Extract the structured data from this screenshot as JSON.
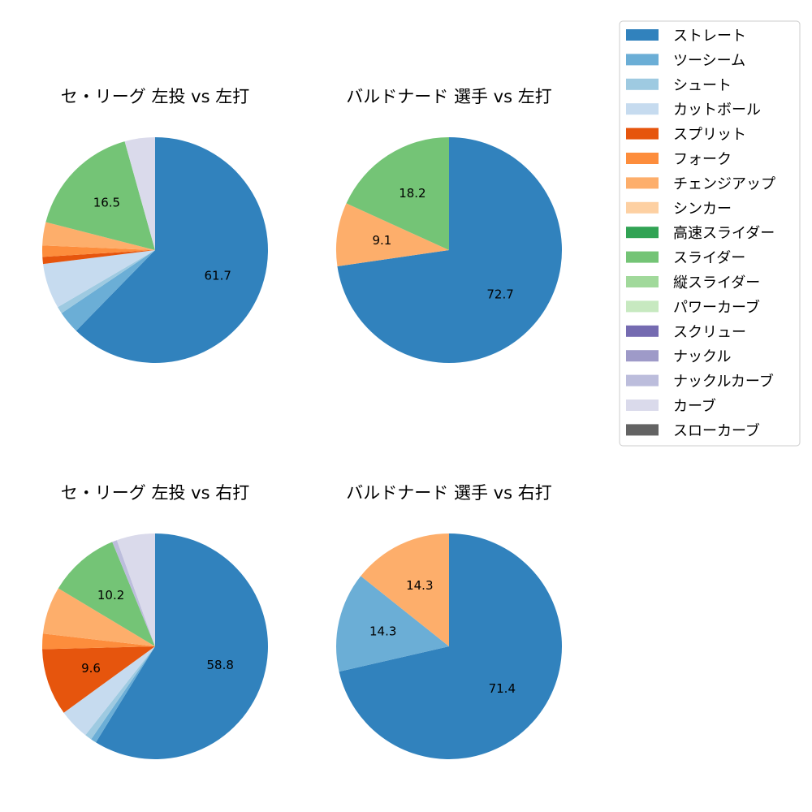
{
  "legend": {
    "items": [
      {
        "label": "ストレート",
        "color": "#3182bd"
      },
      {
        "label": "ツーシーム",
        "color": "#6baed6"
      },
      {
        "label": "シュート",
        "color": "#9ecae1"
      },
      {
        "label": "カットボール",
        "color": "#c6dbef"
      },
      {
        "label": "スプリット",
        "color": "#e6550d"
      },
      {
        "label": "フォーク",
        "color": "#fd8d3c"
      },
      {
        "label": "チェンジアップ",
        "color": "#fdae6b"
      },
      {
        "label": "シンカー",
        "color": "#fdd0a2"
      },
      {
        "label": "高速スライダー",
        "color": "#31a354"
      },
      {
        "label": "スライダー",
        "color": "#74c476"
      },
      {
        "label": "縦スライダー",
        "color": "#a1d99b"
      },
      {
        "label": "パワーカーブ",
        "color": "#c7e9c0"
      },
      {
        "label": "スクリュー",
        "color": "#756bb1"
      },
      {
        "label": "ナックル",
        "color": "#9e9ac8"
      },
      {
        "label": "ナックルカーブ",
        "color": "#bcbddc"
      },
      {
        "label": "カーブ",
        "color": "#dadaeb"
      },
      {
        "label": "スローカーブ",
        "color": "#636363"
      }
    ]
  },
  "chart_data": [
    {
      "type": "pie",
      "title": "セ・リーグ 左投 vs 左打",
      "start_angle_deg": 90,
      "direction": "clockwise",
      "slices": [
        {
          "label": "ストレート",
          "value": 61.7,
          "color": "#3182bd",
          "show_label": "61.7"
        },
        {
          "label": "ツーシーム",
          "value": 3.2,
          "color": "#6baed6",
          "show_label": ""
        },
        {
          "label": "シュート",
          "value": 1.0,
          "color": "#9ecae1",
          "show_label": ""
        },
        {
          "label": "カットボール",
          "value": 6.4,
          "color": "#c6dbef",
          "show_label": ""
        },
        {
          "label": "スプリット",
          "value": 1.0,
          "color": "#e6550d",
          "show_label": ""
        },
        {
          "label": "フォーク",
          "value": 1.6,
          "color": "#fd8d3c",
          "show_label": ""
        },
        {
          "label": "チェンジアップ",
          "value": 3.3,
          "color": "#fdae6b",
          "show_label": ""
        },
        {
          "label": "スライダー",
          "value": 16.5,
          "color": "#74c476",
          "show_label": "16.5"
        },
        {
          "label": "カーブ",
          "value": 4.3,
          "color": "#dadaeb",
          "show_label": ""
        }
      ]
    },
    {
      "type": "pie",
      "title": "バルドナード 選手 vs 左打",
      "start_angle_deg": 90,
      "direction": "clockwise",
      "slices": [
        {
          "label": "ストレート",
          "value": 72.7,
          "color": "#3182bd",
          "show_label": "72.7"
        },
        {
          "label": "チェンジアップ",
          "value": 9.1,
          "color": "#fdae6b",
          "show_label": "9.1"
        },
        {
          "label": "スライダー",
          "value": 18.2,
          "color": "#74c476",
          "show_label": "18.2"
        }
      ]
    },
    {
      "type": "pie",
      "title": "セ・リーグ 左投 vs 右打",
      "start_angle_deg": 90,
      "direction": "clockwise",
      "slices": [
        {
          "label": "ストレート",
          "value": 58.8,
          "color": "#3182bd",
          "show_label": "58.8"
        },
        {
          "label": "ツーシーム",
          "value": 0.8,
          "color": "#6baed6",
          "show_label": ""
        },
        {
          "label": "シュート",
          "value": 1.0,
          "color": "#9ecae1",
          "show_label": ""
        },
        {
          "label": "カットボール",
          "value": 4.4,
          "color": "#c6dbef",
          "show_label": ""
        },
        {
          "label": "スプリット",
          "value": 9.6,
          "color": "#e6550d",
          "show_label": "9.6"
        },
        {
          "label": "フォーク",
          "value": 2.2,
          "color": "#fd8d3c",
          "show_label": ""
        },
        {
          "label": "チェンジアップ",
          "value": 6.8,
          "color": "#fdae6b",
          "show_label": ""
        },
        {
          "label": "スライダー",
          "value": 10.2,
          "color": "#74c476",
          "show_label": "10.2"
        },
        {
          "label": "ナックルカーブ",
          "value": 0.7,
          "color": "#bcbddc",
          "show_label": ""
        },
        {
          "label": "カーブ",
          "value": 5.5,
          "color": "#dadaeb",
          "show_label": ""
        }
      ]
    },
    {
      "type": "pie",
      "title": "バルドナード 選手 vs 右打",
      "start_angle_deg": 90,
      "direction": "clockwise",
      "slices": [
        {
          "label": "ストレート",
          "value": 71.4,
          "color": "#3182bd",
          "show_label": "71.4"
        },
        {
          "label": "ツーシーム",
          "value": 14.3,
          "color": "#6baed6",
          "show_label": "14.3"
        },
        {
          "label": "チェンジアップ",
          "value": 14.3,
          "color": "#fdae6b",
          "show_label": "14.3"
        }
      ]
    }
  ]
}
